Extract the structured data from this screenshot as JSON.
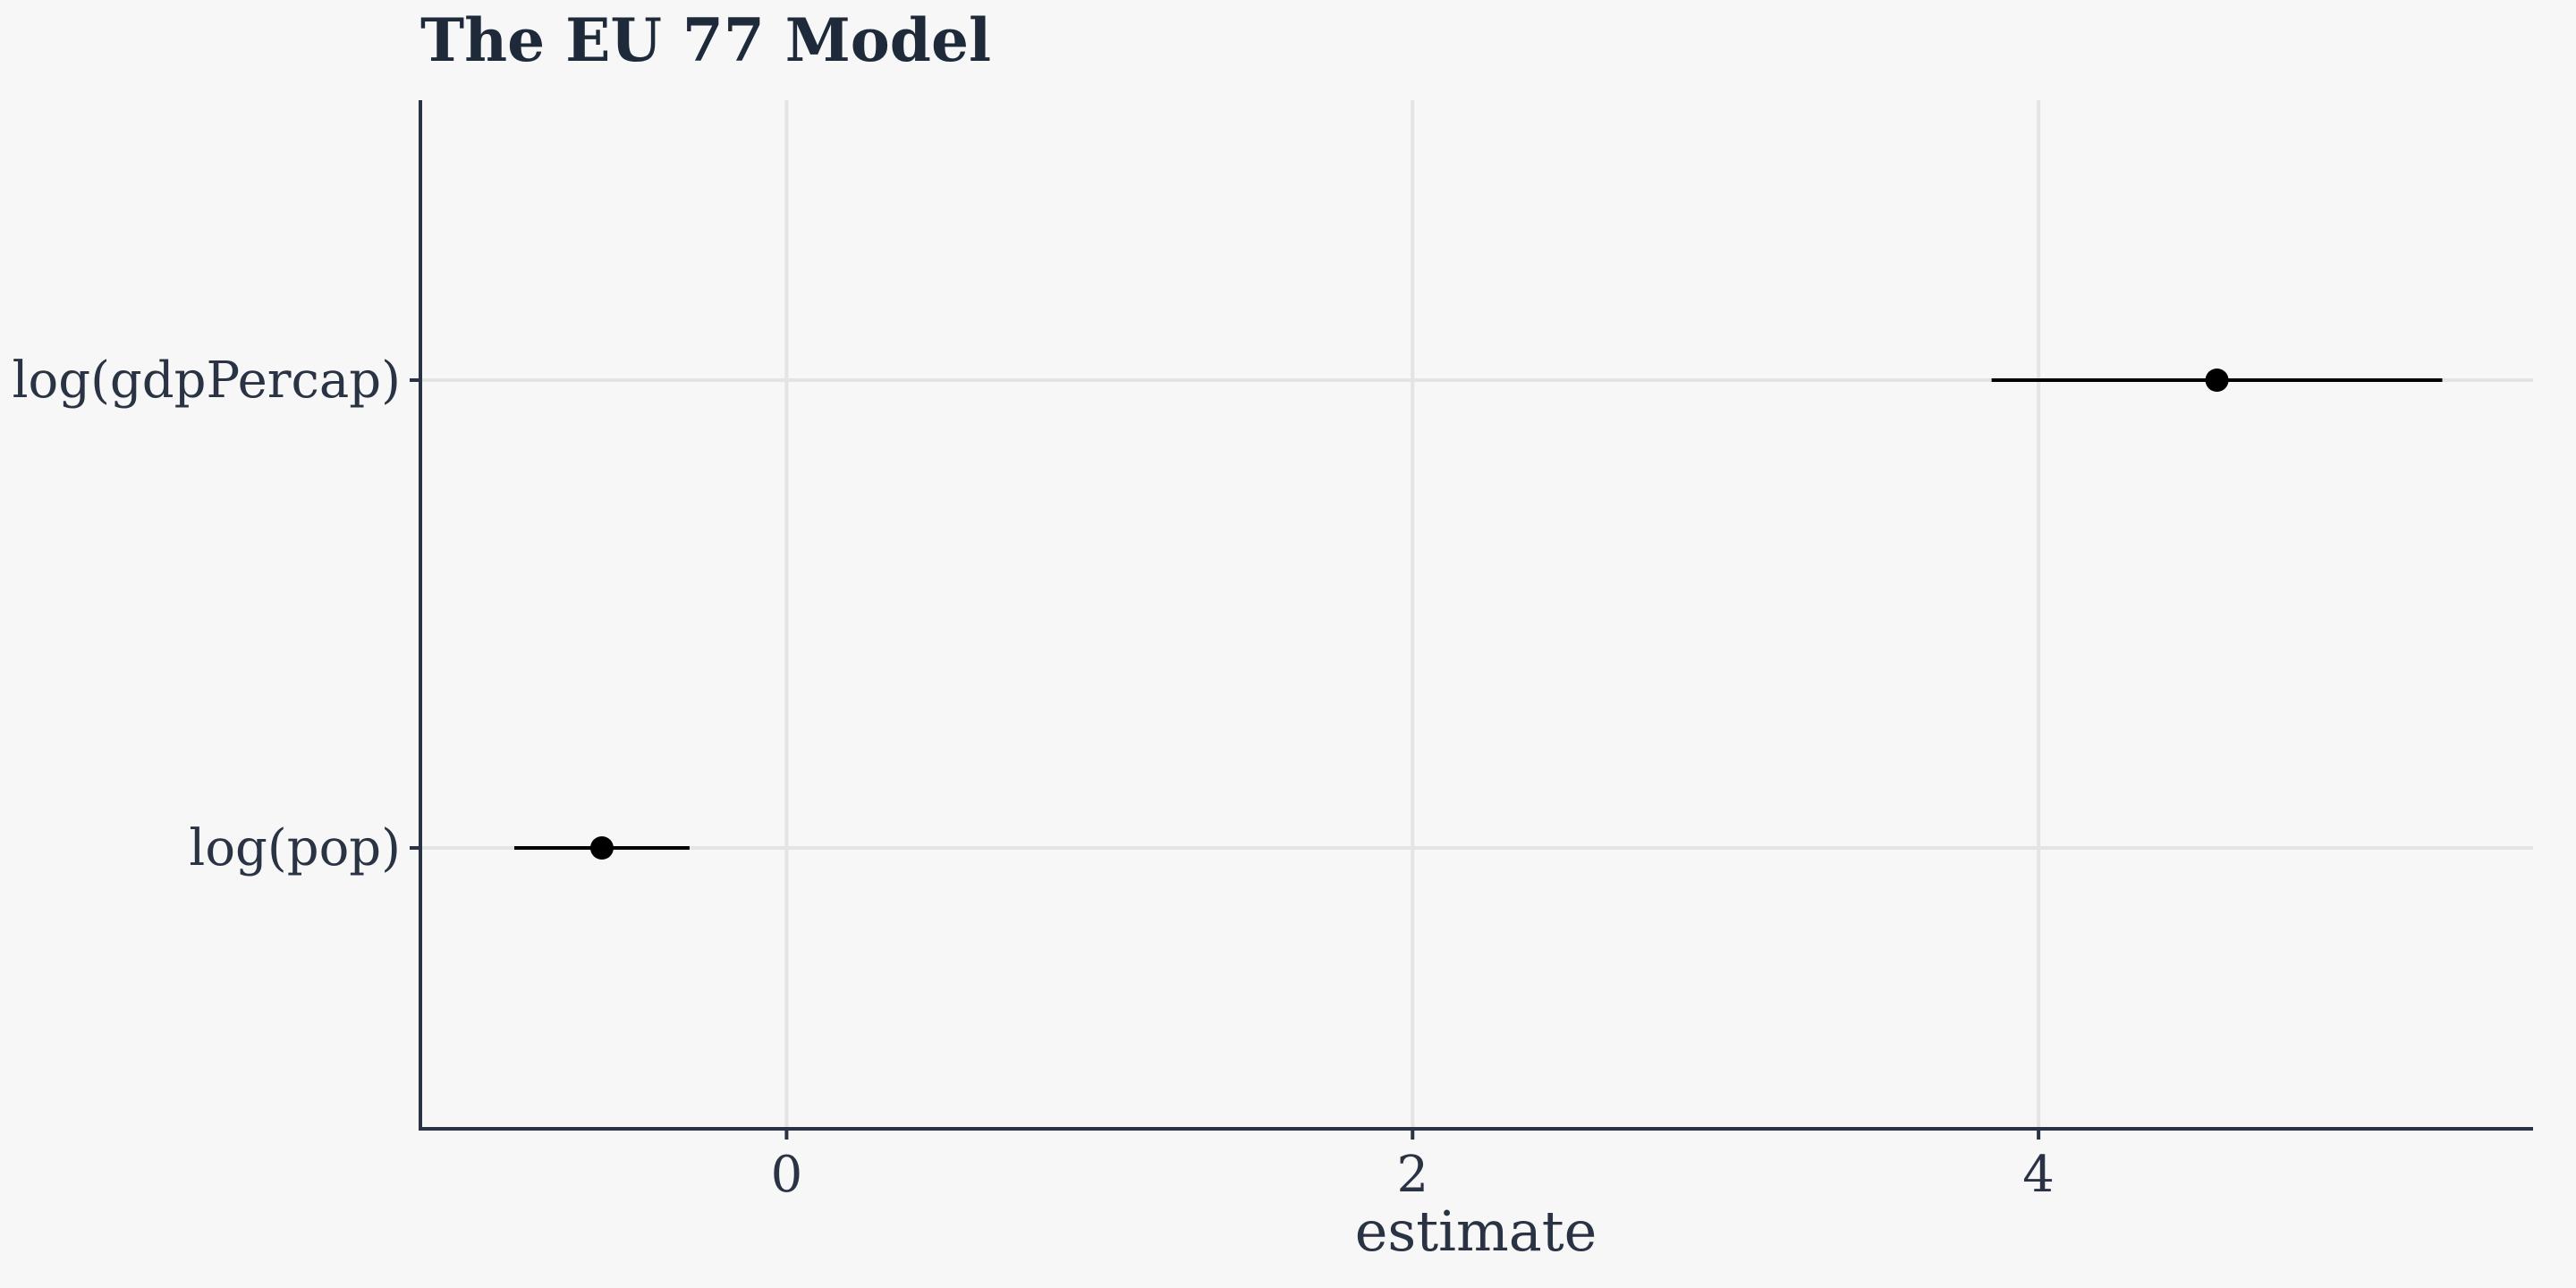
{
  "chart_data": {
    "type": "scatter",
    "title": "The EU 77 Model",
    "xlabel": "estimate",
    "ylabel": "",
    "xlim": [
      -1.17,
      5.58
    ],
    "x_ticks": [
      0,
      2,
      4
    ],
    "x_tick_labels": [
      "0",
      "2",
      "4"
    ],
    "categories": [
      "log(gdpPercap)",
      "log(pop)"
    ],
    "points": [
      {
        "term": "log(gdpPercap)",
        "estimate": 4.57,
        "conf_low": 3.85,
        "conf_high": 5.29
      },
      {
        "term": "log(pop)",
        "estimate": -0.59,
        "conf_low": -0.87,
        "conf_high": -0.31
      }
    ],
    "grid": true,
    "colors": {
      "background": "#f7f7f7",
      "grid": "#e4e4e4",
      "axis": "#2a3344",
      "marker": "#000000"
    }
  }
}
